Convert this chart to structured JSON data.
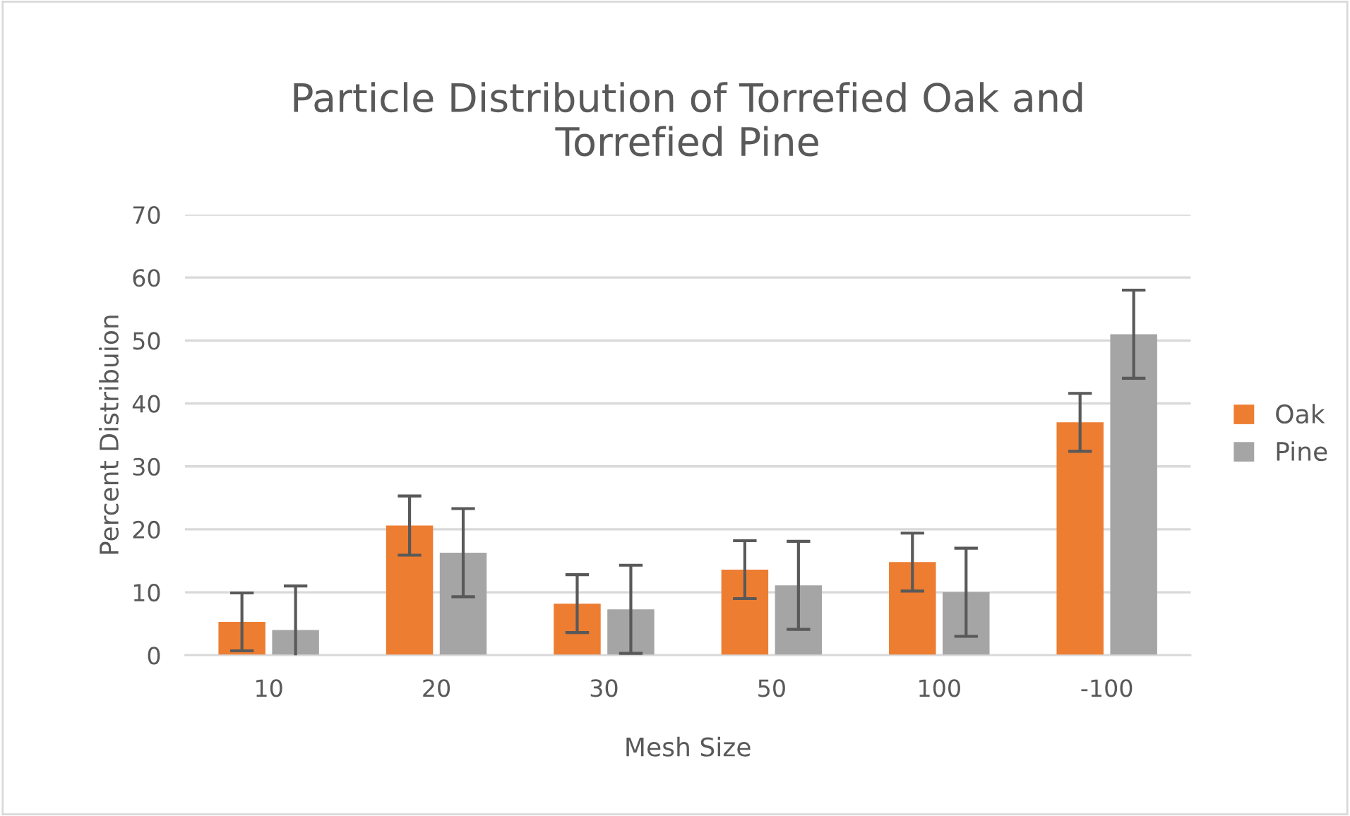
{
  "chart_data": {
    "type": "bar",
    "title": "Particle Distribution of Torrefied Oak and\nTorrefied Pine",
    "xlabel": "Mesh Size",
    "ylabel": "Percent Distribuion",
    "categories": [
      "10",
      "20",
      "30",
      "50",
      "100",
      "-100"
    ],
    "series": [
      {
        "name": "Oak",
        "color": "#ed7d31",
        "values": [
          5.3,
          20.6,
          8.2,
          13.6,
          14.8,
          37.0
        ],
        "errors": [
          4.6,
          4.7,
          4.6,
          4.6,
          4.6,
          4.6
        ]
      },
      {
        "name": "Pine",
        "color": "#a5a5a5",
        "values": [
          4.0,
          16.3,
          7.3,
          11.1,
          10.0,
          51.0
        ],
        "errors": [
          7,
          7,
          7,
          7,
          7,
          7
        ]
      }
    ],
    "ylim": [
      0,
      70
    ],
    "yticks": [
      0,
      10,
      20,
      30,
      40,
      50,
      60,
      70
    ],
    "grid": "y",
    "legend": "right"
  }
}
